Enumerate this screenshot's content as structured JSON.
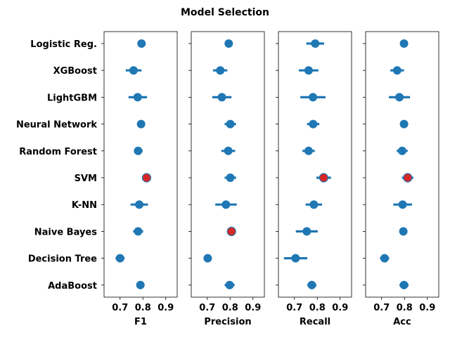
{
  "chart_data": {
    "type": "scatter",
    "title": "Model Selection",
    "models": [
      "Logistic Reg.",
      "XGBoost",
      "LightGBM",
      "Neural Network",
      "Random Forest",
      "SVM",
      "K-NN",
      "Naive Bayes",
      "Decision Tree",
      "AdaBoost"
    ],
    "xlim": [
      0.63,
      0.95
    ],
    "xticks": [
      "0.7",
      "0.8",
      "0.9"
    ],
    "xtick_values": [
      0.7,
      0.8,
      0.9
    ],
    "point_color": "#1f77b4",
    "highlight_color": "#d62728",
    "panels": [
      {
        "metric": "F1",
        "means": [
          0.794,
          0.759,
          0.777,
          0.792,
          0.779,
          0.816,
          0.784,
          0.779,
          0.7,
          0.789
        ],
        "lower": [
          0.778,
          0.725,
          0.737,
          0.781,
          0.761,
          0.798,
          0.746,
          0.757,
          0.68,
          0.771
        ],
        "upper": [
          0.81,
          0.794,
          0.818,
          0.803,
          0.799,
          0.834,
          0.822,
          0.801,
          0.72,
          0.807
        ],
        "best_index": 5
      },
      {
        "metric": "Precision",
        "means": [
          0.794,
          0.757,
          0.764,
          0.801,
          0.792,
          0.801,
          0.782,
          0.806,
          0.702,
          0.798
        ],
        "lower": [
          0.779,
          0.725,
          0.722,
          0.776,
          0.762,
          0.776,
          0.735,
          0.796,
          0.686,
          0.776
        ],
        "upper": [
          0.809,
          0.788,
          0.806,
          0.826,
          0.822,
          0.826,
          0.829,
          0.816,
          0.718,
          0.82
        ],
        "best_index": 7
      },
      {
        "metric": "Recall",
        "means": [
          0.791,
          0.762,
          0.781,
          0.782,
          0.762,
          0.828,
          0.785,
          0.754,
          0.705,
          0.776
        ],
        "lower": [
          0.752,
          0.719,
          0.726,
          0.755,
          0.735,
          0.796,
          0.749,
          0.706,
          0.654,
          0.756
        ],
        "upper": [
          0.83,
          0.805,
          0.836,
          0.809,
          0.789,
          0.86,
          0.821,
          0.802,
          0.756,
          0.796
        ],
        "best_index": 5
      },
      {
        "metric": "Acc",
        "means": [
          0.798,
          0.768,
          0.778,
          0.798,
          0.79,
          0.814,
          0.792,
          0.795,
          0.713,
          0.798
        ],
        "lower": [
          0.784,
          0.738,
          0.732,
          0.785,
          0.766,
          0.789,
          0.751,
          0.78,
          0.693,
          0.778
        ],
        "upper": [
          0.812,
          0.798,
          0.824,
          0.811,
          0.814,
          0.839,
          0.833,
          0.81,
          0.733,
          0.818
        ],
        "best_index": 5
      }
    ]
  }
}
